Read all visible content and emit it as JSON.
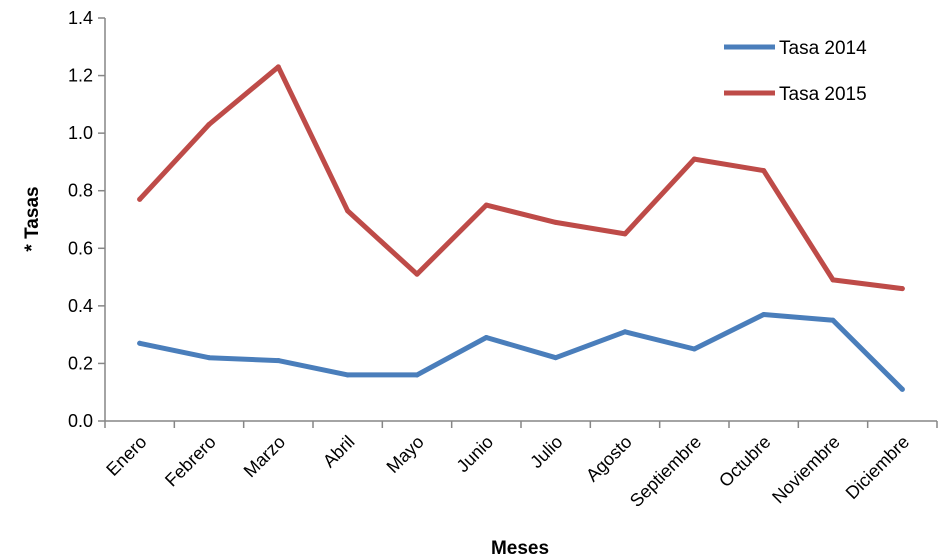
{
  "chart_data": {
    "type": "line",
    "title": "",
    "xlabel": "Meses",
    "ylabel": "* Tasas",
    "ylim": [
      0,
      1.4
    ],
    "yticks": [
      "0.0",
      "0.2",
      "0.4",
      "0.6",
      "0.8",
      "1.0",
      "1.2",
      "1.4"
    ],
    "ytick_values": [
      0,
      0.2,
      0.4,
      0.6,
      0.8,
      1.0,
      1.2,
      1.4
    ],
    "grid": false,
    "legend": "top-right",
    "categories": [
      "Enero",
      "Febrero",
      "Marzo",
      "Abril",
      "Mayo",
      "Junio",
      "Julio",
      "Agosto",
      "Septiembre",
      "Octubre",
      "Noviembre",
      "Diciembre"
    ],
    "series": [
      {
        "name": "Tasa 2014",
        "color": "#4a7ebb",
        "values": [
          0.27,
          0.22,
          0.21,
          0.16,
          0.16,
          0.29,
          0.22,
          0.31,
          0.25,
          0.37,
          0.35,
          0.11
        ]
      },
      {
        "name": "Tasa 2015",
        "color": "#be4b48",
        "values": [
          0.77,
          1.03,
          1.23,
          0.73,
          0.51,
          0.75,
          0.69,
          0.65,
          0.91,
          0.87,
          0.49,
          0.46
        ]
      }
    ]
  }
}
